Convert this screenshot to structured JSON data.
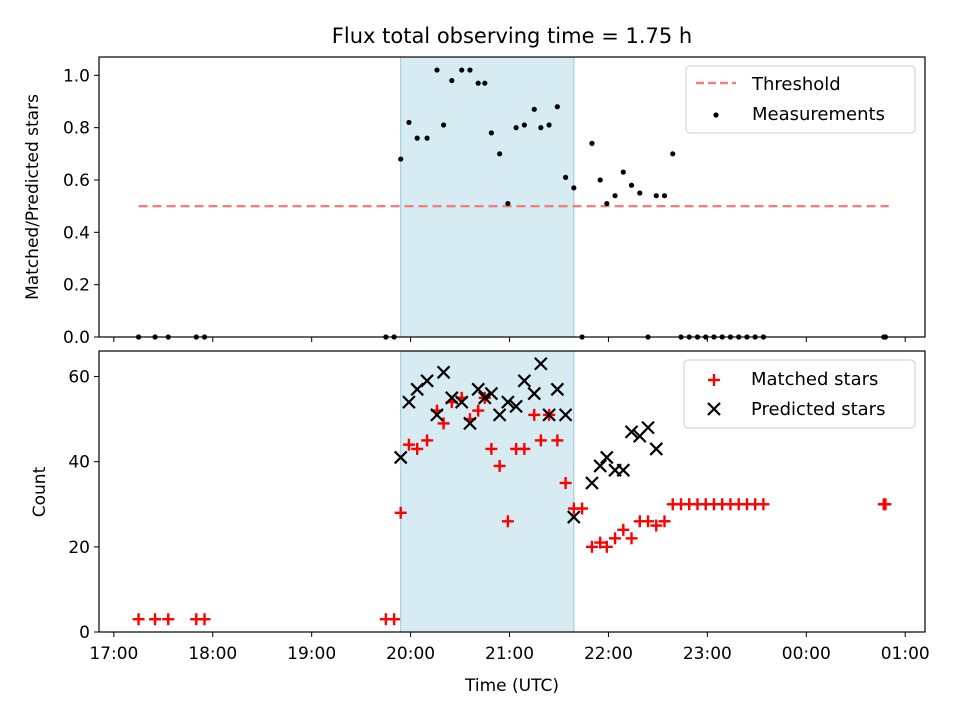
{
  "title": "Flux total observing time = 1.75 h",
  "colors": {
    "threshold": "#f08080",
    "measurement": "#000000",
    "matched": "#ff0000",
    "predicted": "#000000",
    "span": "#add8e6"
  },
  "chart_data": [
    {
      "type": "scatter",
      "ylabel": "Matched/Predicted stars",
      "ylim": [
        0,
        1.07
      ],
      "y_ticks": [
        "0.0",
        "0.2",
        "0.4",
        "0.6",
        "0.8",
        "1.0"
      ],
      "legend_position": "top-right",
      "highlight_span_x": [
        "19:54",
        "21:39"
      ],
      "threshold": {
        "name": "Threshold",
        "value": 0.5,
        "x_range": [
          "17:15",
          "00:50"
        ]
      },
      "measurements": {
        "name": "Measurements",
        "points": [
          [
            "17:15",
            0
          ],
          [
            "17:25",
            0
          ],
          [
            "17:33",
            0
          ],
          [
            "17:50",
            0
          ],
          [
            "17:55",
            0
          ],
          [
            "19:45",
            0
          ],
          [
            "19:50",
            0
          ],
          [
            "19:54",
            0.68
          ],
          [
            "19:59",
            0.82
          ],
          [
            "20:04",
            0.76
          ],
          [
            "20:10",
            0.76
          ],
          [
            "20:16",
            1.02
          ],
          [
            "20:20",
            0.81
          ],
          [
            "20:25",
            0.98
          ],
          [
            "20:31",
            1.02
          ],
          [
            "20:36",
            1.02
          ],
          [
            "20:41",
            0.97
          ],
          [
            "20:45",
            0.97
          ],
          [
            "20:49",
            0.78
          ],
          [
            "20:54",
            0.7
          ],
          [
            "20:59",
            0.51
          ],
          [
            "21:04",
            0.8
          ],
          [
            "21:09",
            0.81
          ],
          [
            "21:15",
            0.87
          ],
          [
            "21:19",
            0.8
          ],
          [
            "21:24",
            0.81
          ],
          [
            "21:29",
            0.88
          ],
          [
            "21:34",
            0.61
          ],
          [
            "21:39",
            0.57
          ],
          [
            "21:44",
            0
          ],
          [
            "21:50",
            0.74
          ],
          [
            "21:55",
            0.6
          ],
          [
            "21:59",
            0.51
          ],
          [
            "22:04",
            0.54
          ],
          [
            "22:09",
            0.63
          ],
          [
            "22:14",
            0.58
          ],
          [
            "22:19",
            0.55
          ],
          [
            "22:24",
            0
          ],
          [
            "22:29",
            0.54
          ],
          [
            "22:34",
            0.54
          ],
          [
            "22:39",
            0.7
          ],
          [
            "22:44",
            0
          ],
          [
            "22:49",
            0
          ],
          [
            "22:54",
            0
          ],
          [
            "22:59",
            0
          ],
          [
            "23:04",
            0
          ],
          [
            "23:09",
            0
          ],
          [
            "23:14",
            0
          ],
          [
            "23:19",
            0
          ],
          [
            "23:24",
            0
          ],
          [
            "23:29",
            0
          ],
          [
            "23:34",
            0
          ],
          [
            "00:47",
            0
          ],
          [
            "00:48",
            0
          ]
        ]
      }
    },
    {
      "type": "scatter",
      "xlabel": "Time (UTC)",
      "ylabel": "Count",
      "ylim": [
        0,
        66
      ],
      "y_ticks": [
        "0",
        "20",
        "40",
        "60"
      ],
      "x_ticks": [
        "17:00",
        "18:00",
        "19:00",
        "20:00",
        "21:00",
        "22:00",
        "23:00",
        "00:00",
        "01:00"
      ],
      "xlim": [
        "16:51",
        "01:12"
      ],
      "legend_position": "top-right",
      "highlight_span_x": [
        "19:54",
        "21:39"
      ],
      "matched": {
        "name": "Matched stars",
        "points": [
          [
            "17:15",
            3
          ],
          [
            "17:25",
            3
          ],
          [
            "17:33",
            3
          ],
          [
            "17:50",
            3
          ],
          [
            "17:55",
            3
          ],
          [
            "19:45",
            3
          ],
          [
            "19:50",
            3
          ],
          [
            "19:54",
            28
          ],
          [
            "19:59",
            44
          ],
          [
            "20:04",
            43
          ],
          [
            "20:10",
            45
          ],
          [
            "20:16",
            52
          ],
          [
            "20:20",
            49
          ],
          [
            "20:25",
            54
          ],
          [
            "20:31",
            55
          ],
          [
            "20:36",
            50
          ],
          [
            "20:41",
            52
          ],
          [
            "20:45",
            55
          ],
          [
            "20:49",
            43
          ],
          [
            "20:54",
            39
          ],
          [
            "20:59",
            26
          ],
          [
            "21:04",
            43
          ],
          [
            "21:09",
            43
          ],
          [
            "21:15",
            51
          ],
          [
            "21:19",
            45
          ],
          [
            "21:24",
            51
          ],
          [
            "21:29",
            45
          ],
          [
            "21:34",
            35
          ],
          [
            "21:39",
            29
          ],
          [
            "21:44",
            29
          ],
          [
            "21:50",
            20
          ],
          [
            "21:55",
            21
          ],
          [
            "21:59",
            20
          ],
          [
            "22:04",
            22
          ],
          [
            "22:09",
            24
          ],
          [
            "22:14",
            22
          ],
          [
            "22:19",
            26
          ],
          [
            "22:24",
            26
          ],
          [
            "22:29",
            25
          ],
          [
            "22:34",
            26
          ],
          [
            "22:39",
            30
          ],
          [
            "22:44",
            30
          ],
          [
            "22:49",
            30
          ],
          [
            "22:54",
            30
          ],
          [
            "22:59",
            30
          ],
          [
            "23:04",
            30
          ],
          [
            "23:09",
            30
          ],
          [
            "23:14",
            30
          ],
          [
            "23:19",
            30
          ],
          [
            "23:24",
            30
          ],
          [
            "23:29",
            30
          ],
          [
            "23:34",
            30
          ],
          [
            "00:47",
            30
          ],
          [
            "00:48",
            30
          ]
        ]
      },
      "predicted": {
        "name": "Predicted stars",
        "points": [
          [
            "19:54",
            41
          ],
          [
            "19:59",
            54
          ],
          [
            "20:04",
            57
          ],
          [
            "20:10",
            59
          ],
          [
            "20:16",
            51
          ],
          [
            "20:20",
            61
          ],
          [
            "20:25",
            55
          ],
          [
            "20:31",
            54
          ],
          [
            "20:36",
            49
          ],
          [
            "20:41",
            57
          ],
          [
            "20:45",
            55
          ],
          [
            "20:49",
            56
          ],
          [
            "20:54",
            51
          ],
          [
            "20:59",
            54
          ],
          [
            "21:04",
            53
          ],
          [
            "21:09",
            59
          ],
          [
            "21:15",
            56
          ],
          [
            "21:19",
            63
          ],
          [
            "21:24",
            51
          ],
          [
            "21:29",
            57
          ],
          [
            "21:34",
            51
          ],
          [
            "21:39",
            27
          ],
          [
            "21:50",
            35
          ],
          [
            "21:55",
            39
          ],
          [
            "21:59",
            41
          ],
          [
            "22:04",
            38
          ],
          [
            "22:09",
            38
          ],
          [
            "22:14",
            47
          ],
          [
            "22:19",
            46
          ],
          [
            "22:24",
            48
          ],
          [
            "22:29",
            43
          ]
        ]
      }
    }
  ]
}
